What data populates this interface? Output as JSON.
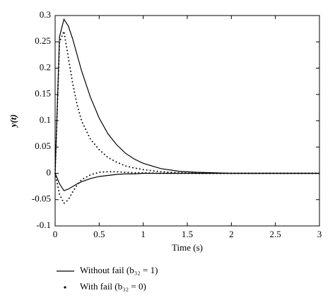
{
  "chart_data": {
    "type": "line",
    "x_label": "Time (s)",
    "y_label": "y(t)",
    "x": [
      0,
      0.05,
      0.1,
      0.15,
      0.2,
      0.25,
      0.3,
      0.4,
      0.5,
      0.6,
      0.7,
      0.8,
      0.9,
      1.0,
      1.2,
      1.4,
      1.6,
      1.8,
      2.0,
      2.5,
      3.0
    ],
    "series": [
      {
        "name": "Without fail (b₃₂ = 1)",
        "color": "#000000",
        "style": "solid",
        "curves": [
          [
            0,
            0.26,
            0.293,
            0.28,
            0.255,
            0.225,
            0.195,
            0.145,
            0.105,
            0.075,
            0.054,
            0.038,
            0.027,
            0.019,
            0.009,
            0.004,
            0.002,
            0.001,
            0,
            0,
            0
          ],
          [
            0,
            -0.02,
            -0.033,
            -0.03,
            -0.025,
            -0.02,
            -0.016,
            -0.01,
            -0.006,
            -0.004,
            -0.002,
            -0.001,
            -0.001,
            0,
            0,
            0,
            0,
            0,
            0,
            0,
            0
          ]
        ]
      },
      {
        "name": "With fail (b₃₂ = 0)",
        "color": "#000000",
        "style": "dotted",
        "curves": [
          [
            0,
            0.25,
            0.27,
            0.22,
            0.17,
            0.13,
            0.1,
            0.065,
            0.045,
            0.03,
            0.021,
            0.014,
            0.01,
            0.007,
            0.003,
            0.001,
            0,
            0,
            0,
            0,
            0
          ],
          [
            0,
            -0.04,
            -0.057,
            -0.05,
            -0.035,
            -0.022,
            -0.012,
            -0.003,
            0.002,
            0.003,
            0.003,
            0.002,
            0.001,
            0.001,
            0,
            0,
            0,
            0,
            0,
            0,
            0
          ]
        ]
      }
    ],
    "xlim": [
      0,
      3
    ],
    "xticks": [
      0,
      0.5,
      1,
      1.5,
      2,
      2.5,
      3
    ],
    "ylim": [
      -0.1,
      0.3
    ],
    "yticks": [
      -0.1,
      -0.05,
      0,
      0.05,
      0.1,
      0.15,
      0.2,
      0.25,
      0.3
    ],
    "grid": false
  }
}
